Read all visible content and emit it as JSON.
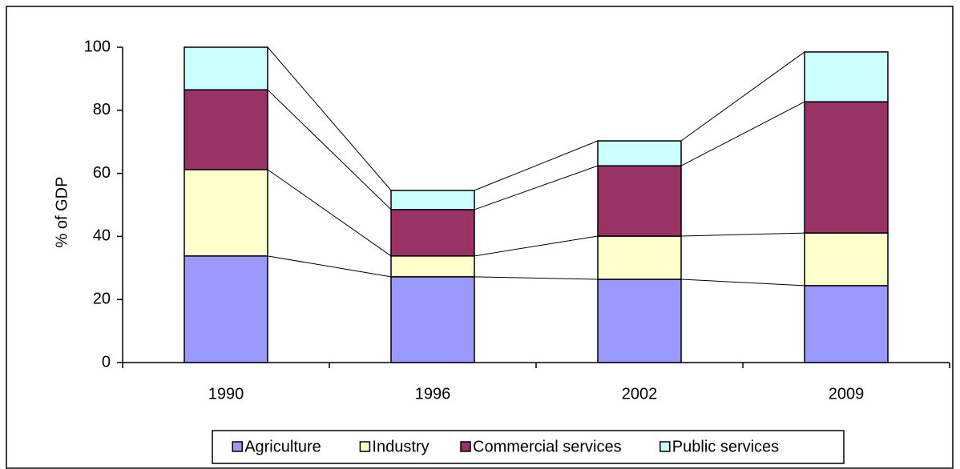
{
  "chart_data": {
    "type": "stacked_bar",
    "y_label": "% of GDP",
    "categories": [
      "1990",
      "1996",
      "2002",
      "2009"
    ],
    "series": [
      {
        "name": "Agriculture",
        "color": "#9999ff",
        "values": [
          33.8,
          27.2,
          26.4,
          24.4
        ]
      },
      {
        "name": "Industry",
        "color": "#ffffcc",
        "values": [
          27.4,
          6.6,
          13.7,
          16.7
        ]
      },
      {
        "name": "Commercial services",
        "color": "#993366",
        "values": [
          25.3,
          14.7,
          22.3,
          41.6
        ]
      },
      {
        "name": "Public services",
        "color": "#ccffff",
        "values": [
          13.5,
          6.1,
          7.9,
          15.8
        ]
      }
    ],
    "ylim": [
      0,
      100
    ],
    "yticks": [
      0,
      20,
      40,
      60,
      80,
      100
    ],
    "series_lines": true
  }
}
